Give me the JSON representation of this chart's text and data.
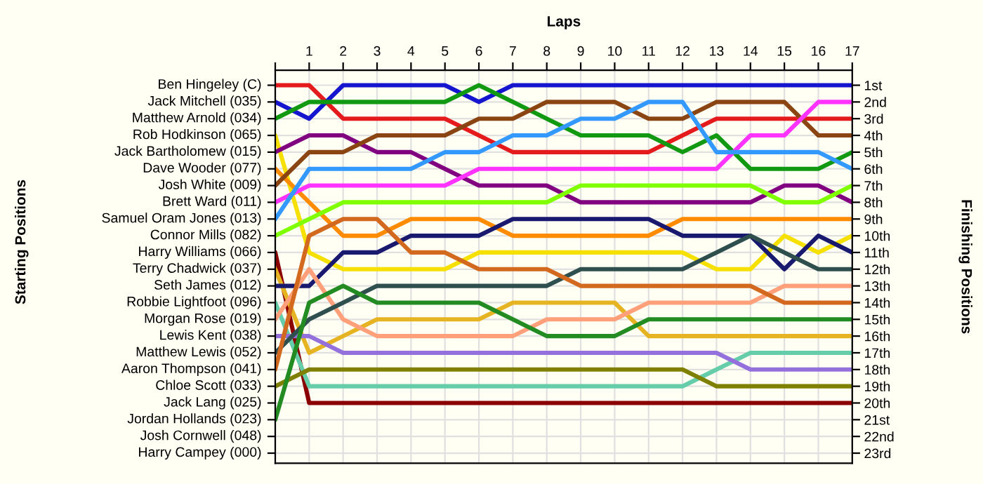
{
  "chart_data": {
    "type": "line",
    "xlabel": "Laps",
    "ylabel": "Finishing Positions",
    "annotations": [
      "Ben Hingeley (C)",
      "Jack Mitchell (035)",
      "Matthew Arnold (034)",
      "Rob Hodkinson (065)",
      "Jack Bartholomew (015)",
      "Dave Wooder (077)",
      "Josh White (009)",
      "Brett Ward (011)",
      "Samuel Oram Jones (013)",
      "Connor Mills (082)",
      "Harry Williams (066)",
      "Terry Chadwick (037)",
      "Seth James (012)",
      "Robbie Lightfoot (096)",
      "Morgan Rose (019)",
      "Lewis Kent (038)",
      "Matthew Lewis (052)",
      "Aaron Thompson (041)",
      "Chloe Scott (033)",
      "Jack Lang (025)",
      "Jordan Hollands (023)",
      "Josh Cornwell (048)",
      "Harry Campey (000)",
      "Starting Positions"
    ],
    "x": [
      0,
      1,
      2,
      3,
      4,
      5,
      6,
      7,
      8,
      9,
      10,
      11,
      12,
      13,
      14,
      15,
      16,
      17
    ],
    "xlim": [
      0,
      17
    ],
    "xticks": [
      {
        "value": 0,
        "label": null
      },
      1,
      2,
      3,
      4,
      5,
      6,
      7,
      8,
      9,
      10,
      11,
      12,
      13,
      14,
      15,
      16,
      17
    ],
    "ylim": [
      23.6,
      0.1
    ],
    "yticks": [
      {
        "value": 1,
        "label": "1st"
      },
      {
        "value": 2,
        "label": "2nd"
      },
      {
        "value": 3,
        "label": "3rd"
      },
      {
        "value": 4,
        "label": "4th"
      },
      {
        "value": 5,
        "label": "5th"
      },
      {
        "value": 6,
        "label": "6th"
      },
      {
        "value": 7,
        "label": "7th"
      },
      {
        "value": 8,
        "label": "8th"
      },
      {
        "value": 9,
        "label": "9th"
      },
      {
        "value": 10,
        "label": "10th"
      },
      {
        "value": 11,
        "label": "11th"
      },
      {
        "value": 12,
        "label": "12th"
      },
      {
        "value": 13,
        "label": "13th"
      },
      {
        "value": 14,
        "label": "14th"
      },
      {
        "value": 15,
        "label": "15th"
      },
      {
        "value": 16,
        "label": "16th"
      },
      {
        "value": 17,
        "label": "17th"
      },
      {
        "value": 18,
        "label": "18th"
      },
      {
        "value": 19,
        "label": "19th"
      },
      {
        "value": 20,
        "label": "20th"
      },
      {
        "value": 21,
        "label": "21st"
      },
      {
        "value": 22,
        "label": "22nd"
      },
      {
        "value": 23,
        "label": "23rd"
      }
    ],
    "grid": true,
    "marker": "none",
    "line_style": "solid",
    "series": [
      {
        "color": "#e41a1c",
        "values": [
          1,
          1,
          3,
          3,
          3,
          3,
          4,
          5,
          5,
          5,
          5,
          5,
          4,
          3,
          3,
          3,
          3,
          3
        ]
      },
      {
        "color": "#1515d0",
        "values": [
          2,
          3,
          1,
          1,
          1,
          1,
          2,
          1,
          1,
          1,
          1,
          1,
          1,
          1,
          1,
          1,
          1,
          1
        ]
      },
      {
        "color": "#119911",
        "values": [
          3,
          2,
          2,
          2,
          2,
          2,
          1,
          2,
          3,
          4,
          4,
          4,
          5,
          4,
          6,
          6,
          6,
          5
        ]
      },
      {
        "color": "#f5e000",
        "values": [
          4,
          11,
          12,
          12,
          12,
          12,
          11,
          11,
          11,
          11,
          11,
          11,
          11,
          12,
          12,
          10,
          11,
          10
        ]
      },
      {
        "color": "#800080",
        "values": [
          5,
          4,
          4,
          5,
          5,
          6,
          7,
          7,
          7,
          8,
          8,
          8,
          8,
          8,
          8,
          7,
          7,
          8
        ]
      },
      {
        "color": "#ff8c00",
        "values": [
          6,
          8,
          10,
          10,
          9,
          9,
          9,
          10,
          10,
          10,
          10,
          10,
          9,
          9,
          9,
          9,
          9,
          9
        ]
      },
      {
        "color": "#8b4513",
        "values": [
          7,
          5,
          5,
          4,
          4,
          4,
          3,
          3,
          2,
          2,
          2,
          3,
          3,
          2,
          2,
          2,
          4,
          4
        ]
      },
      {
        "color": "#ff33ff",
        "values": [
          8,
          7,
          7,
          7,
          7,
          7,
          6,
          6,
          6,
          6,
          6,
          6,
          6,
          6,
          4,
          4,
          2,
          2
        ]
      },
      {
        "color": "#3399ff",
        "values": [
          9,
          6,
          6,
          6,
          6,
          5,
          5,
          4,
          4,
          3,
          3,
          2,
          2,
          5,
          5,
          5,
          5,
          6
        ]
      },
      {
        "color": "#80ff00",
        "values": [
          10,
          9,
          8,
          8,
          8,
          8,
          8,
          8,
          8,
          7,
          7,
          7,
          7,
          7,
          7,
          8,
          8,
          7
        ]
      },
      {
        "color": "#8b0000",
        "values": [
          11,
          20,
          20,
          20,
          20,
          20,
          20,
          20,
          20,
          20,
          20,
          20,
          20,
          20,
          20,
          20,
          20,
          20
        ]
      },
      {
        "color": "#e6b422",
        "values": [
          12,
          17,
          16,
          15,
          15,
          15,
          15,
          14,
          14,
          14,
          14,
          16,
          16,
          16,
          16,
          16,
          16,
          16
        ]
      },
      {
        "color": "#191970",
        "values": [
          13,
          13,
          11,
          11,
          10,
          10,
          10,
          9,
          9,
          9,
          9,
          9,
          10,
          10,
          10,
          12,
          10,
          11
        ]
      },
      {
        "color": "#66cdaa",
        "values": [
          14,
          19,
          19,
          19,
          19,
          19,
          19,
          19,
          19,
          19,
          19,
          19,
          19,
          18,
          17,
          17,
          17,
          17
        ]
      },
      {
        "color": "#ffa07a",
        "values": [
          15,
          12,
          15,
          16,
          16,
          16,
          16,
          16,
          15,
          15,
          15,
          14,
          14,
          14,
          14,
          13,
          13,
          13
        ]
      },
      {
        "color": "#9370db",
        "values": [
          16,
          16,
          17,
          17,
          17,
          17,
          17,
          17,
          17,
          17,
          17,
          17,
          17,
          17,
          18,
          18,
          18,
          18
        ]
      },
      {
        "color": "#2f4f4f",
        "values": [
          17,
          15,
          14,
          13,
          13,
          13,
          13,
          13,
          13,
          12,
          12,
          12,
          12,
          11,
          10,
          11,
          12,
          12
        ]
      },
      {
        "color": "#d2691e",
        "values": [
          18,
          10,
          9,
          9,
          11,
          11,
          12,
          12,
          12,
          13,
          13,
          13,
          13,
          13,
          13,
          14,
          14,
          14
        ]
      },
      {
        "color": "#808000",
        "values": [
          19,
          18,
          18,
          18,
          18,
          18,
          18,
          18,
          18,
          18,
          18,
          18,
          18,
          19,
          19,
          19,
          19,
          19
        ]
      },
      {
        "color": "#228b22",
        "values": [
          21,
          14,
          13,
          14,
          14,
          14,
          14,
          15,
          16,
          16,
          16,
          15,
          15,
          15,
          15,
          15,
          15,
          15
        ]
      }
    ]
  }
}
